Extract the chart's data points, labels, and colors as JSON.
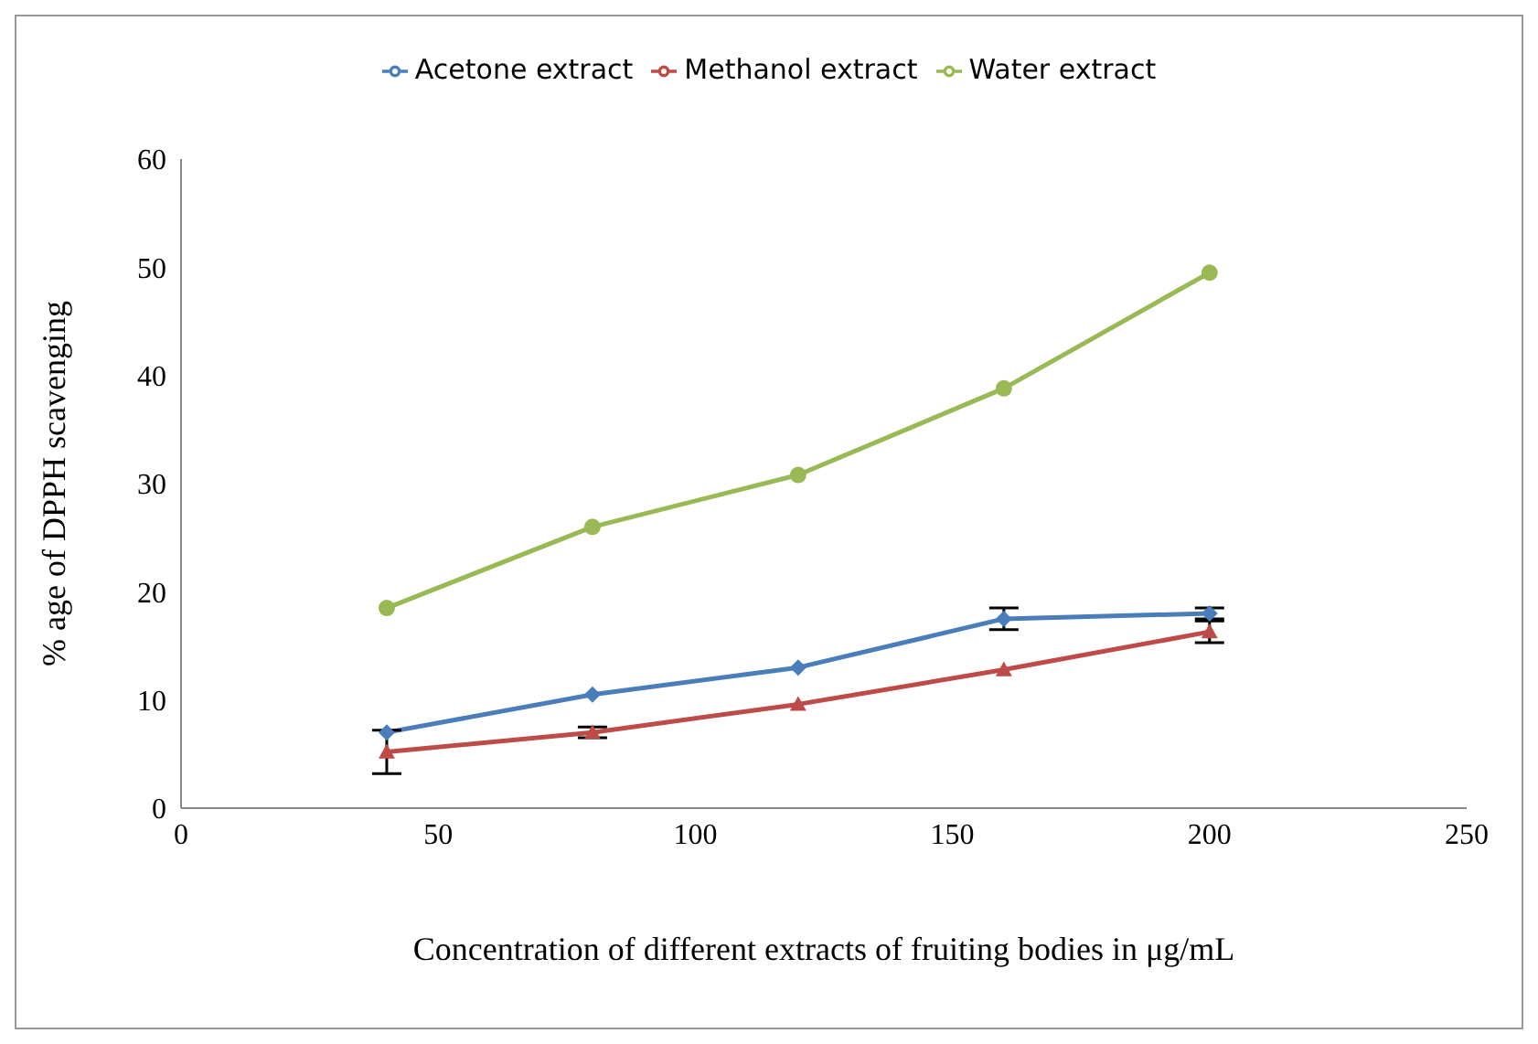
{
  "chart_data": {
    "type": "line",
    "xlabel": "Concentration of  different extracts of fruiting bodies in μg/mL",
    "ylabel": "% age of DPPH scavenging",
    "x": [
      40,
      80,
      120,
      160,
      200
    ],
    "xlim": [
      0,
      250
    ],
    "xticks": [
      0,
      50,
      100,
      150,
      200,
      250
    ],
    "ylim": [
      0,
      60
    ],
    "yticks": [
      0,
      10,
      20,
      30,
      40,
      50,
      60
    ],
    "legend": "top",
    "series": [
      {
        "name": "Acetone extract",
        "color": "#4a7ebb",
        "marker": "diamond",
        "values": [
          7,
          10.5,
          13,
          17.5,
          18
        ],
        "errors": [
          null,
          null,
          null,
          1,
          0.5
        ]
      },
      {
        "name": "Methanol extract",
        "color": "#be4b48",
        "marker": "triangle",
        "values": [
          5.2,
          7,
          9.6,
          12.8,
          16.3
        ],
        "errors": [
          2,
          0.5,
          null,
          null,
          1
        ]
      },
      {
        "name": "Water extract",
        "color": "#98b954",
        "marker": "circle",
        "values": [
          18.5,
          26,
          30.8,
          38.8,
          49.5
        ]
      }
    ]
  }
}
